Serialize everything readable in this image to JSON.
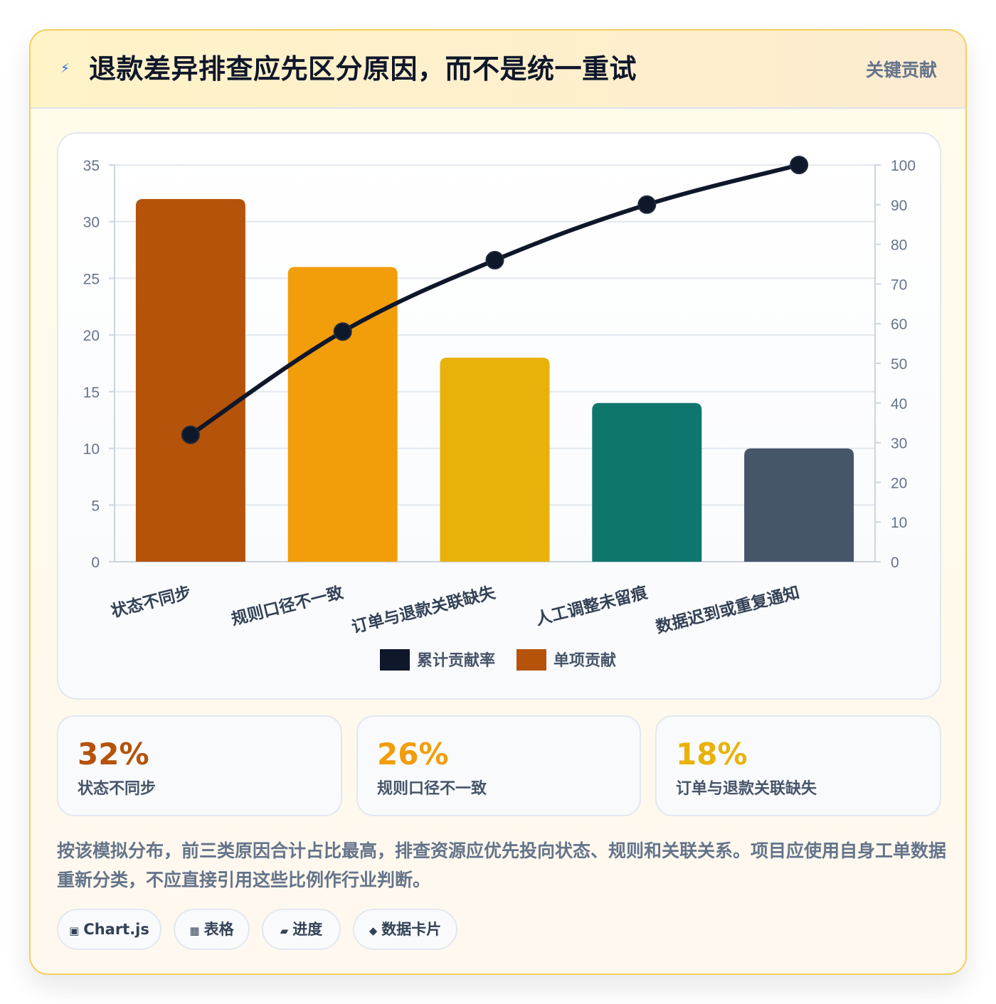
{
  "header": {
    "icon": "lightning-icon",
    "title": "退款差异排查应先区分原因，而不是统一重试",
    "badge": "关键贡献"
  },
  "chart_data": {
    "type": "bar",
    "categories": [
      "状态不同步",
      "规则口径不一致",
      "订单与退款关联缺失",
      "人工调整未留痕",
      "数据迟到或重复通知"
    ],
    "series": [
      {
        "name": "单项贡献",
        "type": "bar",
        "axis": "left",
        "values": [
          32,
          26,
          18,
          14,
          10
        ],
        "colors": [
          "#b45309",
          "#f29d0a",
          "#e8b20a",
          "#0f766e",
          "#475569"
        ]
      },
      {
        "name": "累计贡献率",
        "type": "line",
        "axis": "right",
        "values": [
          32,
          58,
          76,
          90,
          100
        ],
        "color": "#0f172a"
      }
    ],
    "y_left": {
      "min": 0,
      "max": 35,
      "ticks": [
        0,
        5,
        10,
        15,
        20,
        25,
        30,
        35
      ]
    },
    "y_right": {
      "min": 0,
      "max": 100,
      "ticks": [
        0,
        10,
        20,
        30,
        40,
        50,
        60,
        70,
        80,
        90,
        100
      ]
    },
    "legend": {
      "position": "bottom",
      "items": [
        {
          "label": "累计贡献率",
          "color": "#0f172a"
        },
        {
          "label": "单项贡献",
          "color": "#b45309"
        }
      ]
    },
    "grid": true
  },
  "stats": [
    {
      "value": "32%",
      "label": "状态不同步",
      "color": "#b45309"
    },
    {
      "value": "26%",
      "label": "规则口径不一致",
      "color": "#f29d0a"
    },
    {
      "value": "18%",
      "label": "订单与退款关联缺失",
      "color": "#e8b20a"
    }
  ],
  "note": "按该模拟分布，前三类原因合计占比最高，排查资源应优先投向状态、规则和关联关系。项目应使用自身工单数据重新分类，不应直接引用这些比例作行业判断。",
  "tags": [
    {
      "icon": "▣",
      "icon_name": "chart-icon",
      "label": "Chart.js"
    },
    {
      "icon": "▦",
      "icon_name": "table-icon",
      "label": "表格"
    },
    {
      "icon": "▰",
      "icon_name": "progress-icon",
      "label": "进度"
    },
    {
      "icon": "◆",
      "icon_name": "data-card-icon",
      "label": "数据卡片"
    }
  ]
}
